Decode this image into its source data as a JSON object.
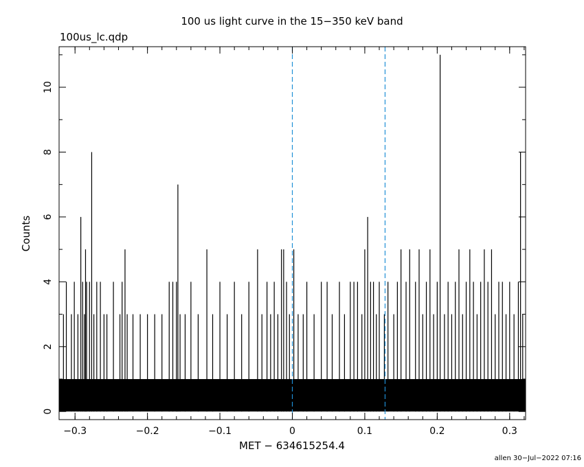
{
  "chart_data": {
    "type": "bar",
    "title": "100 us light curve in the 15−350 keV band",
    "file_label": "100us_lc.qdp",
    "xlabel": "MET − 634615254.4",
    "ylabel": "Counts",
    "xlim": [
      -0.322,
      0.322
    ],
    "ylim": [
      -0.25,
      11.25
    ],
    "xticks": [
      -0.3,
      -0.2,
      -0.1,
      0,
      0.1,
      0.2,
      0.3
    ],
    "xtick_labels": [
      "−0.3",
      "−0.2",
      "−0.1",
      "0",
      "0.1",
      "0.2",
      "0.3"
    ],
    "yticks": [
      0,
      2,
      4,
      6,
      8,
      10
    ],
    "ytick_labels": [
      "0",
      "2",
      "4",
      "6",
      "8",
      "10"
    ],
    "bin_width": 0.0001,
    "baseline_level": 1,
    "peaks": [
      {
        "x": -0.316,
        "y": 3
      },
      {
        "x": -0.312,
        "y": 4
      },
      {
        "x": -0.305,
        "y": 3
      },
      {
        "x": -0.301,
        "y": 4
      },
      {
        "x": -0.296,
        "y": 3
      },
      {
        "x": -0.292,
        "y": 6
      },
      {
        "x": -0.2895,
        "y": 4
      },
      {
        "x": -0.287,
        "y": 3
      },
      {
        "x": -0.2855,
        "y": 5
      },
      {
        "x": -0.284,
        "y": 4
      },
      {
        "x": -0.28,
        "y": 4
      },
      {
        "x": -0.277,
        "y": 8
      },
      {
        "x": -0.274,
        "y": 3
      },
      {
        "x": -0.27,
        "y": 4
      },
      {
        "x": -0.265,
        "y": 4
      },
      {
        "x": -0.26,
        "y": 3
      },
      {
        "x": -0.256,
        "y": 3
      },
      {
        "x": -0.247,
        "y": 4
      },
      {
        "x": -0.238,
        "y": 3
      },
      {
        "x": -0.235,
        "y": 4
      },
      {
        "x": -0.231,
        "y": 5
      },
      {
        "x": -0.228,
        "y": 3
      },
      {
        "x": -0.22,
        "y": 3
      },
      {
        "x": -0.21,
        "y": 3
      },
      {
        "x": -0.2,
        "y": 3
      },
      {
        "x": -0.19,
        "y": 3
      },
      {
        "x": -0.18,
        "y": 3
      },
      {
        "x": -0.17,
        "y": 4
      },
      {
        "x": -0.165,
        "y": 4
      },
      {
        "x": -0.16,
        "y": 4
      },
      {
        "x": -0.158,
        "y": 7
      },
      {
        "x": -0.155,
        "y": 3
      },
      {
        "x": -0.148,
        "y": 3
      },
      {
        "x": -0.14,
        "y": 4
      },
      {
        "x": -0.13,
        "y": 3
      },
      {
        "x": -0.118,
        "y": 5
      },
      {
        "x": -0.11,
        "y": 3
      },
      {
        "x": -0.1,
        "y": 4
      },
      {
        "x": -0.09,
        "y": 3
      },
      {
        "x": -0.08,
        "y": 4
      },
      {
        "x": -0.07,
        "y": 3
      },
      {
        "x": -0.06,
        "y": 4
      },
      {
        "x": -0.048,
        "y": 5
      },
      {
        "x": -0.042,
        "y": 3
      },
      {
        "x": -0.035,
        "y": 4
      },
      {
        "x": -0.03,
        "y": 3
      },
      {
        "x": -0.025,
        "y": 4
      },
      {
        "x": -0.02,
        "y": 3
      },
      {
        "x": -0.015,
        "y": 5
      },
      {
        "x": -0.012,
        "y": 5
      },
      {
        "x": -0.008,
        "y": 4
      },
      {
        "x": -0.004,
        "y": 3
      },
      {
        "x": 0.002,
        "y": 5
      },
      {
        "x": 0.008,
        "y": 3
      },
      {
        "x": 0.015,
        "y": 3
      },
      {
        "x": 0.02,
        "y": 4
      },
      {
        "x": 0.03,
        "y": 3
      },
      {
        "x": 0.04,
        "y": 4
      },
      {
        "x": 0.048,
        "y": 4
      },
      {
        "x": 0.055,
        "y": 3
      },
      {
        "x": 0.065,
        "y": 4
      },
      {
        "x": 0.072,
        "y": 3
      },
      {
        "x": 0.08,
        "y": 4
      },
      {
        "x": 0.085,
        "y": 4
      },
      {
        "x": 0.09,
        "y": 4
      },
      {
        "x": 0.096,
        "y": 3
      },
      {
        "x": 0.1,
        "y": 5
      },
      {
        "x": 0.104,
        "y": 6
      },
      {
        "x": 0.108,
        "y": 4
      },
      {
        "x": 0.112,
        "y": 4
      },
      {
        "x": 0.116,
        "y": 3
      },
      {
        "x": 0.12,
        "y": 4
      },
      {
        "x": 0.127,
        "y": 3
      },
      {
        "x": 0.132,
        "y": 4
      },
      {
        "x": 0.14,
        "y": 3
      },
      {
        "x": 0.145,
        "y": 4
      },
      {
        "x": 0.15,
        "y": 5
      },
      {
        "x": 0.157,
        "y": 4
      },
      {
        "x": 0.162,
        "y": 5
      },
      {
        "x": 0.17,
        "y": 4
      },
      {
        "x": 0.175,
        "y": 5
      },
      {
        "x": 0.18,
        "y": 3
      },
      {
        "x": 0.185,
        "y": 4
      },
      {
        "x": 0.19,
        "y": 5
      },
      {
        "x": 0.195,
        "y": 3
      },
      {
        "x": 0.2,
        "y": 4
      },
      {
        "x": 0.204,
        "y": 11
      },
      {
        "x": 0.21,
        "y": 3
      },
      {
        "x": 0.215,
        "y": 4
      },
      {
        "x": 0.22,
        "y": 3
      },
      {
        "x": 0.225,
        "y": 4
      },
      {
        "x": 0.23,
        "y": 5
      },
      {
        "x": 0.235,
        "y": 3
      },
      {
        "x": 0.24,
        "y": 4
      },
      {
        "x": 0.245,
        "y": 5
      },
      {
        "x": 0.25,
        "y": 4
      },
      {
        "x": 0.255,
        "y": 3
      },
      {
        "x": 0.26,
        "y": 4
      },
      {
        "x": 0.265,
        "y": 5
      },
      {
        "x": 0.27,
        "y": 4
      },
      {
        "x": 0.275,
        "y": 5
      },
      {
        "x": 0.28,
        "y": 3
      },
      {
        "x": 0.285,
        "y": 4
      },
      {
        "x": 0.29,
        "y": 4
      },
      {
        "x": 0.295,
        "y": 3
      },
      {
        "x": 0.3,
        "y": 4
      },
      {
        "x": 0.306,
        "y": 3
      },
      {
        "x": 0.312,
        "y": 4
      },
      {
        "x": 0.315,
        "y": 8
      },
      {
        "x": 0.318,
        "y": 3
      }
    ],
    "vlines": [
      0,
      0.128
    ],
    "grid": false,
    "legend": "none",
    "bar_color": "#000000",
    "vline_color": "#1e8fd6"
  },
  "footer": "allen 30−Jul−2022 07:16"
}
